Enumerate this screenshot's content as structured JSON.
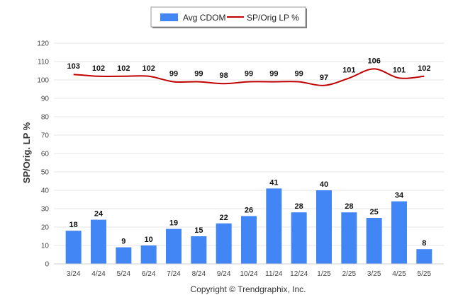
{
  "chart_data": {
    "type": "bar",
    "categories": [
      "3/24",
      "4/24",
      "5/24",
      "6/24",
      "7/24",
      "8/24",
      "9/24",
      "10/24",
      "11/24",
      "12/24",
      "1/25",
      "2/25",
      "3/25",
      "4/25",
      "5/25"
    ],
    "series": [
      {
        "name": "Avg CDOM",
        "type": "bar",
        "color": "#4285f4",
        "values": [
          18,
          24,
          9,
          10,
          19,
          15,
          22,
          26,
          41,
          28,
          40,
          28,
          25,
          34,
          8
        ]
      },
      {
        "name": "SP/Orig LP %",
        "type": "line",
        "color": "#c00000",
        "values": [
          103,
          102,
          102,
          102,
          99,
          99,
          98,
          99,
          99,
          99,
          97,
          101,
          106,
          101,
          102
        ]
      }
    ],
    "ylabel": "SP/Orig. LP %",
    "ylim": [
      0,
      120
    ],
    "yticks": [
      0,
      10,
      20,
      30,
      40,
      50,
      60,
      70,
      80,
      90,
      100,
      110,
      120
    ],
    "grid": true,
    "legend": "top-center"
  },
  "footer": {
    "credit": "Copyright © Trendgraphix, Inc."
  }
}
